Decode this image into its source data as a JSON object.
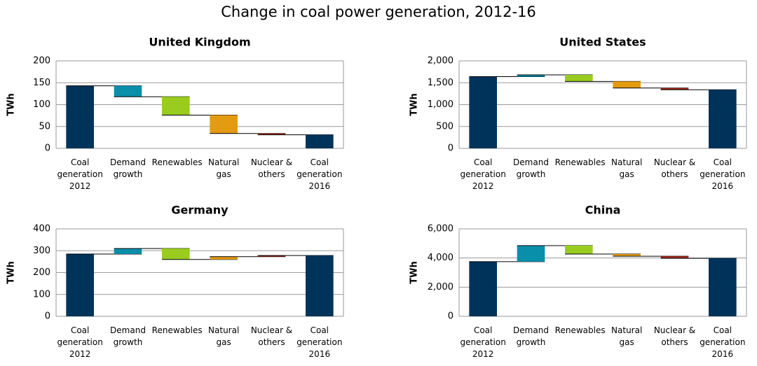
{
  "title": "Change in coal power generation, 2012-16",
  "chart_data": [
    {
      "type": "waterfall",
      "title": "United Kingdom",
      "ylabel": "TWh",
      "categories": [
        "Coal generation 2012",
        "Demand growth",
        "Renewables",
        "Natural gas",
        "Nuclear & others",
        "Coal generation 2016"
      ],
      "values": [
        143,
        -25,
        -42,
        -42,
        -3,
        31
      ],
      "colors": [
        "#00335a",
        "#0a8fab",
        "#99cc1f",
        "#e39b11",
        "#a02a1c",
        "#00335a"
      ],
      "ylim": [
        0,
        200
      ],
      "yticks": [
        0,
        50,
        100,
        150,
        200
      ],
      "grid": true
    },
    {
      "type": "waterfall",
      "title": "United States",
      "ylabel": "TWh",
      "categories": [
        "Coal generation 2012",
        "Demand growth",
        "Renewables",
        "Natural gas",
        "Nuclear & others",
        "Coal generation 2016"
      ],
      "values": [
        1640,
        40,
        -150,
        -150,
        -40,
        1340
      ],
      "colors": [
        "#00335a",
        "#0a8fab",
        "#99cc1f",
        "#e39b11",
        "#a02a1c",
        "#00335a"
      ],
      "ylim": [
        0,
        2000
      ],
      "yticks": [
        0,
        500,
        {
          "value": 1000,
          "label": "1,000"
        },
        {
          "value": 1500,
          "label": "1,500"
        },
        {
          "value": 2000,
          "label": "2,000"
        }
      ],
      "grid": true
    },
    {
      "type": "waterfall",
      "title": "Germany",
      "ylabel": "TWh",
      "categories": [
        "Coal generation 2012",
        "Demand growth",
        "Renewables",
        "Natural gas",
        "Nuclear & others",
        "Coal generation 2016"
      ],
      "values": [
        285,
        25,
        -50,
        13,
        5,
        278
      ],
      "colors": [
        "#00335a",
        "#0a8fab",
        "#99cc1f",
        "#e39b11",
        "#a02a1c",
        "#00335a"
      ],
      "ylim": [
        0,
        400
      ],
      "yticks": [
        0,
        100,
        200,
        300,
        400
      ],
      "grid": true
    },
    {
      "type": "waterfall",
      "title": "China",
      "ylabel": "TWh",
      "categories": [
        "Coal generation 2012",
        "Demand growth",
        "Renewables",
        "Natural gas",
        "Nuclear & others",
        "Coal generation 2016"
      ],
      "values": [
        3750,
        1100,
        -580,
        -150,
        -140,
        3980
      ],
      "colors": [
        "#00335a",
        "#0a8fab",
        "#99cc1f",
        "#e39b11",
        "#a02a1c",
        "#00335a"
      ],
      "ylim": [
        0,
        6000
      ],
      "yticks": [
        0,
        {
          "value": 2000,
          "label": "2,000"
        },
        {
          "value": 4000,
          "label": "4,000"
        },
        {
          "value": 6000,
          "label": "6,000"
        }
      ],
      "grid": true
    }
  ]
}
